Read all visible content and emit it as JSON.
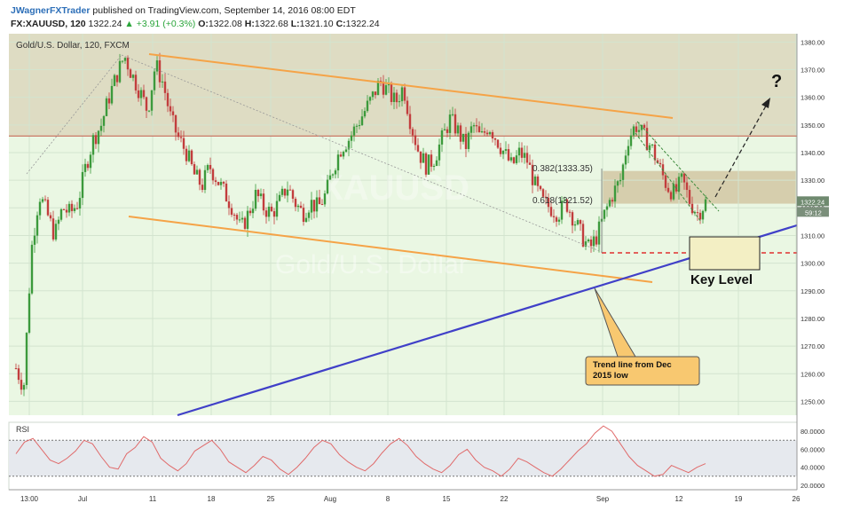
{
  "header": {
    "author": "JWagnerFXTrader",
    "published": "published on TradingView.com, September 14, 2016 08:00 EDT",
    "symbol": "FX:XAUUSD, 120",
    "last": "1322.24",
    "change": "+3.91 (+0.3%)",
    "open_label": "O:",
    "open": "1322.08",
    "high_label": "H:",
    "high": "1322.68",
    "low_label": "L:",
    "low": "1321.10",
    "close_label": "C:",
    "close": "1322.24"
  },
  "chart_title": "Gold/U.S. Dollar, 120, FXCM",
  "watermark": {
    "line1": "XAUUSD",
    "line2": "Gold/U.S. Dollar"
  },
  "price_axis": {
    "ticks": [
      "1380.00",
      "1370.00",
      "1360.00",
      "1350.00",
      "1340.00",
      "1330.00",
      "1320.00",
      "1310.00",
      "1300.00",
      "1290.00",
      "1280.00",
      "1270.00",
      "1260.00",
      "1250.00"
    ],
    "last_price": "1322.24",
    "countdown": "59:12"
  },
  "time_axis": {
    "ticks": [
      "13:00",
      "Jul",
      "11",
      "18",
      "25",
      "Aug",
      "8",
      "15",
      "22",
      "Sep",
      "12",
      "19",
      "26"
    ]
  },
  "rsi": {
    "label": "RSI",
    "ticks": [
      "80.0000",
      "60.0000",
      "40.0000",
      "20.0000"
    ],
    "upper": 70,
    "lower": 30
  },
  "annotations": {
    "fib_382": "0.382(1333.35)",
    "fib_618": "0.618(1321.52)",
    "question": "?",
    "key_level": "Key Level",
    "callout": "Trend line from Dec 2015 low"
  },
  "colors": {
    "plot_bg": "#eaf7e3",
    "zone_top": "#d9d3b8",
    "fib_zone": "#d4c9a6",
    "candle_up": "#3c9a3c",
    "candle_down": "#c23d3d",
    "orange_line": "#f5a347",
    "blue_line": "#4040c8",
    "red_level": "#e03030",
    "resistance": "#c86a5a",
    "rsi_line": "#e06a6a",
    "key_box": "#f3efc4",
    "callout_fill": "#f8c870"
  },
  "chart_data": {
    "type": "candlestick",
    "title": "Gold/U.S. Dollar, 120, FXCM",
    "ylim": [
      1245,
      1383
    ],
    "y_ticks": [
      1250,
      1260,
      1270,
      1280,
      1290,
      1300,
      1310,
      1320,
      1330,
      1340,
      1350,
      1360,
      1370,
      1380
    ],
    "x_categories": [
      "13:00",
      "Jul",
      "11",
      "18",
      "25",
      "Aug",
      "8",
      "15",
      "22",
      "Sep",
      "12",
      "19",
      "26"
    ],
    "price_path": [
      [
        0,
        1262
      ],
      [
        0.03,
        1255
      ],
      [
        0.06,
        1305
      ],
      [
        0.09,
        1325
      ],
      [
        0.12,
        1318
      ],
      [
        0.15,
        1310
      ],
      [
        0.18,
        1320
      ],
      [
        0.21,
        1318
      ],
      [
        0.24,
        1322
      ],
      [
        0.27,
        1335
      ],
      [
        0.3,
        1345
      ],
      [
        0.33,
        1350
      ],
      [
        0.36,
        1360
      ],
      [
        0.39,
        1368
      ],
      [
        0.42,
        1375
      ],
      [
        0.45,
        1368
      ],
      [
        0.48,
        1362
      ],
      [
        0.51,
        1355
      ],
      [
        0.54,
        1372
      ],
      [
        0.57,
        1365
      ],
      [
        0.6,
        1352
      ],
      [
        0.63,
        1345
      ],
      [
        0.66,
        1340
      ],
      [
        0.69,
        1332
      ],
      [
        0.72,
        1328
      ],
      [
        0.75,
        1335
      ],
      [
        0.78,
        1330
      ],
      [
        0.81,
        1325
      ],
      [
        0.84,
        1320
      ],
      [
        0.87,
        1312
      ],
      [
        0.9,
        1318
      ],
      [
        0.93,
        1325
      ],
      [
        0.96,
        1320
      ],
      [
        0.99,
        1318
      ],
      [
        1.02,
        1322
      ],
      [
        1.05,
        1328
      ],
      [
        1.08,
        1322
      ],
      [
        1.11,
        1318
      ],
      [
        1.14,
        1322
      ],
      [
        1.17,
        1320
      ],
      [
        1.2,
        1325
      ],
      [
        1.23,
        1335
      ],
      [
        1.26,
        1342
      ],
      [
        1.29,
        1345
      ],
      [
        1.32,
        1350
      ],
      [
        1.35,
        1355
      ],
      [
        1.38,
        1360
      ],
      [
        1.41,
        1366
      ],
      [
        1.44,
        1362
      ],
      [
        1.47,
        1358
      ],
      [
        1.5,
        1364
      ],
      [
        1.53,
        1350
      ],
      [
        1.56,
        1340
      ],
      [
        1.59,
        1335
      ],
      [
        1.62,
        1338
      ],
      [
        1.65,
        1345
      ],
      [
        1.68,
        1352
      ],
      [
        1.71,
        1348
      ],
      [
        1.74,
        1342
      ],
      [
        1.77,
        1350
      ],
      [
        1.8,
        1345
      ],
      [
        1.83,
        1350
      ],
      [
        1.86,
        1345
      ],
      [
        1.89,
        1340
      ],
      [
        1.92,
        1335
      ],
      [
        1.95,
        1340
      ],
      [
        1.98,
        1337
      ],
      [
        2.01,
        1328
      ],
      [
        2.04,
        1322
      ],
      [
        2.07,
        1320
      ],
      [
        2.1,
        1318
      ],
      [
        2.13,
        1322
      ],
      [
        2.16,
        1316
      ],
      [
        2.19,
        1310
      ],
      [
        2.22,
        1305
      ],
      [
        2.25,
        1310
      ],
      [
        2.28,
        1318
      ],
      [
        2.31,
        1325
      ],
      [
        2.34,
        1330
      ],
      [
        2.37,
        1345
      ],
      [
        2.4,
        1350
      ],
      [
        2.43,
        1346
      ],
      [
        2.46,
        1342
      ],
      [
        2.49,
        1335
      ],
      [
        2.52,
        1328
      ],
      [
        2.55,
        1325
      ],
      [
        2.58,
        1330
      ],
      [
        2.61,
        1322
      ],
      [
        2.64,
        1318
      ],
      [
        2.67,
        1322
      ]
    ],
    "rsi_ylim": [
      15,
      90
    ],
    "rsi_levels": [
      30,
      70
    ],
    "rsi_series": [
      55,
      68,
      72,
      60,
      48,
      44,
      50,
      58,
      70,
      66,
      52,
      40,
      38,
      55,
      62,
      74,
      68,
      50,
      42,
      36,
      44,
      58,
      64,
      70,
      60,
      46,
      40,
      34,
      42,
      52,
      48,
      38,
      32,
      40,
      50,
      62,
      70,
      66,
      54,
      46,
      40,
      36,
      44,
      56,
      66,
      72,
      64,
      52,
      44,
      38,
      34,
      42,
      54,
      60,
      48,
      40,
      36,
      30,
      38,
      50,
      46,
      40,
      34,
      30,
      38,
      48,
      58,
      66,
      78,
      86,
      80,
      66,
      52,
      42,
      36,
      30,
      32,
      42,
      38,
      34,
      40,
      44
    ],
    "lines": [
      {
        "name": "",
        "points": [
          [
            1306,
            1375
          ],
          [
            1660,
            1351
          ]
        ]
      },
      {
        "name": "",
        "points": [
          [
            1292,
            1318
          ],
          [
            1670,
            1292
          ]
        ]
      },
      {
        "name": "",
        "points": [
          [
            1301,
            1245
          ],
          [
            2660,
            1313
          ]
        ]
      },
      {
        "name": "",
        "points": [
          [
            1300,
            1346
          ],
          [
            2660,
            1346
          ]
        ]
      },
      {
        "name": "",
        "points": [
          [
            2170,
            1302
          ],
          [
            2660,
            1302
          ]
        ]
      }
    ]
  }
}
